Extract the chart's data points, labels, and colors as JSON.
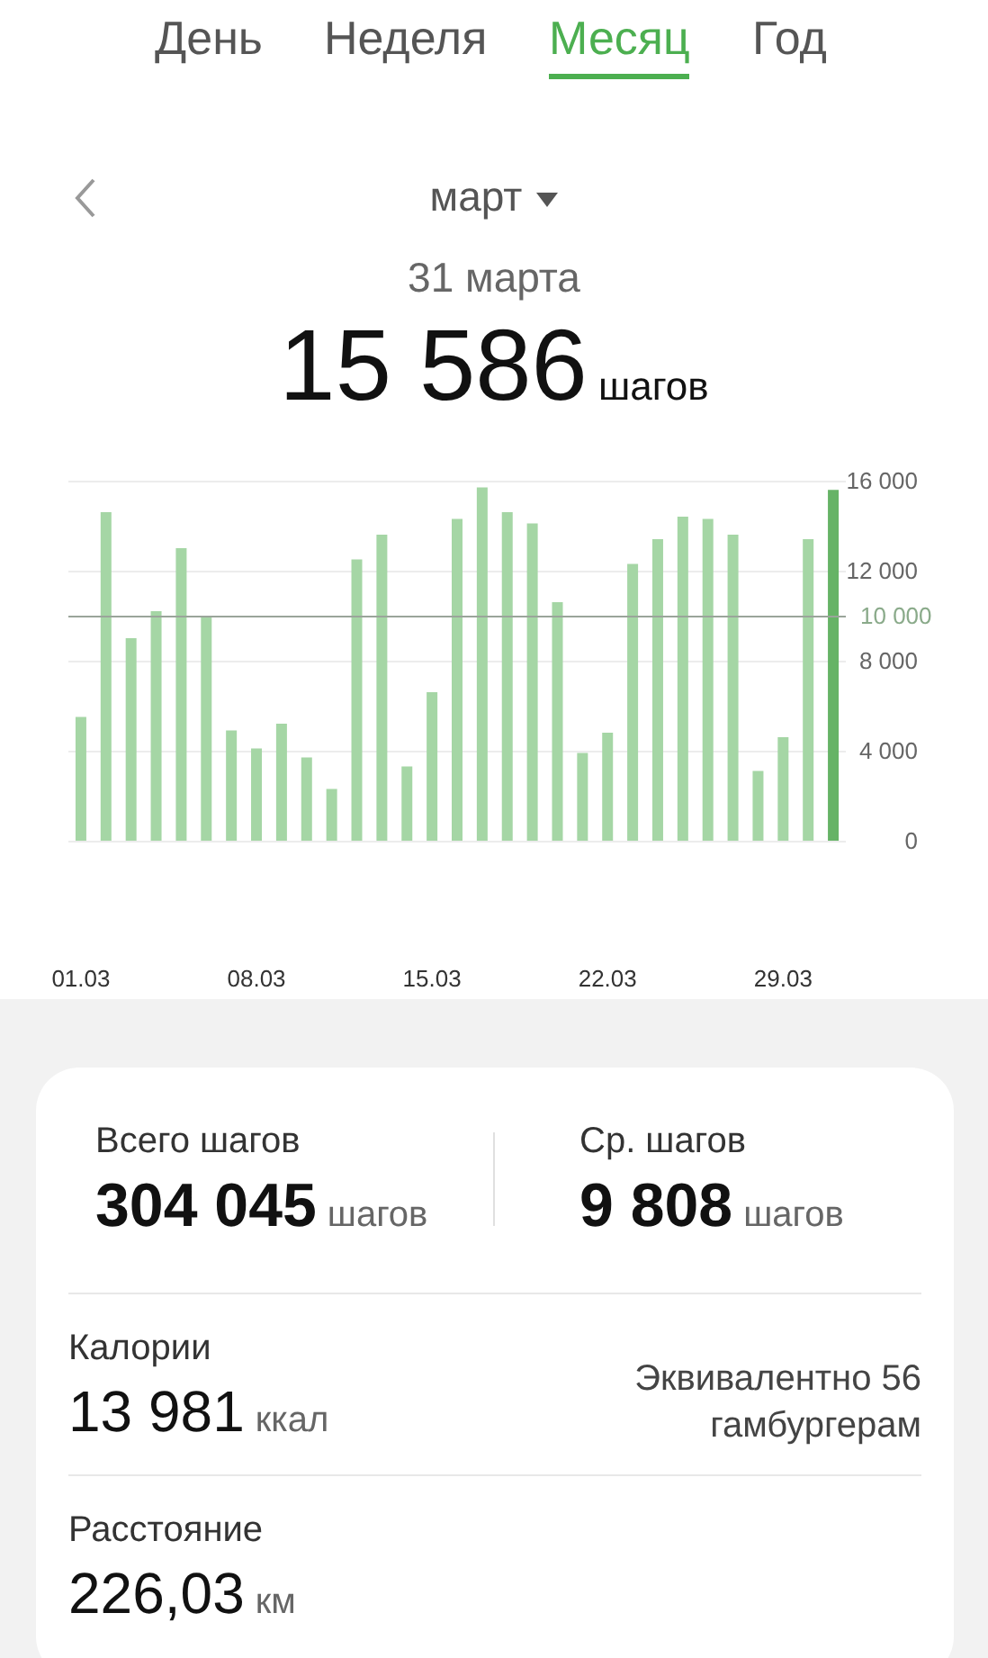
{
  "chart_data": {
    "type": "bar",
    "title": "31 марта",
    "subtitle": "март",
    "categories": [
      "01.03",
      null,
      null,
      null,
      null,
      null,
      null,
      "08.03",
      null,
      null,
      null,
      null,
      null,
      null,
      "15.03",
      null,
      null,
      null,
      null,
      null,
      null,
      "22.03",
      null,
      null,
      null,
      null,
      null,
      null,
      "29.03",
      null,
      null
    ],
    "values": [
      5500,
      14600,
      9000,
      10200,
      13000,
      10000,
      4900,
      4100,
      5200,
      3700,
      2300,
      12500,
      13600,
      3300,
      6600,
      14300,
      15700,
      14600,
      14100,
      10600,
      3900,
      4800,
      12300,
      13400,
      14400,
      14300,
      13600,
      3100,
      4600,
      13400,
      15586
    ],
    "colors": [
      "#a5d6a5",
      "#a5d6a5",
      "#a5d6a5",
      "#a5d6a5",
      "#a5d6a5",
      "#a5d6a5",
      "#a5d6a5",
      "#a5d6a5",
      "#a5d6a5",
      "#a5d6a5",
      "#a5d6a5",
      "#a5d6a5",
      "#a5d6a5",
      "#a5d6a5",
      "#a5d6a5",
      "#a5d6a5",
      "#a5d6a5",
      "#a5d6a5",
      "#a5d6a5",
      "#a5d6a5",
      "#a5d6a5",
      "#a5d6a5",
      "#a5d6a5",
      "#a5d6a5",
      "#a5d6a5",
      "#a5d6a5",
      "#a5d6a5",
      "#a5d6a5",
      "#a5d6a5",
      "#a5d6a5",
      "#66b366"
    ],
    "ylim": [
      0,
      16000
    ],
    "yticks": [
      {
        "value": 0,
        "label": "0"
      },
      {
        "value": 4000,
        "label": "4 000"
      },
      {
        "value": 8000,
        "label": "8 000"
      },
      {
        "value": 12000,
        "label": "12 000"
      },
      {
        "value": 16000,
        "label": "16 000"
      }
    ],
    "grid": "y",
    "ref_lines": [
      {
        "axis": "y",
        "value": 10000,
        "label": "10 000",
        "color": "#8aaa8a"
      }
    ],
    "annotations": [
      "День",
      "Неделя",
      "Месяц",
      "Год",
      "15 586",
      "шагов",
      "Всего шагов",
      "304 045",
      "шагов",
      "Ср. шагов",
      "9 808",
      "шагов",
      "Калории",
      "13 981",
      "ккал",
      "Эквивалентно 56 гамбургерам",
      "Расстояние",
      "226,03",
      "км"
    ]
  }
}
